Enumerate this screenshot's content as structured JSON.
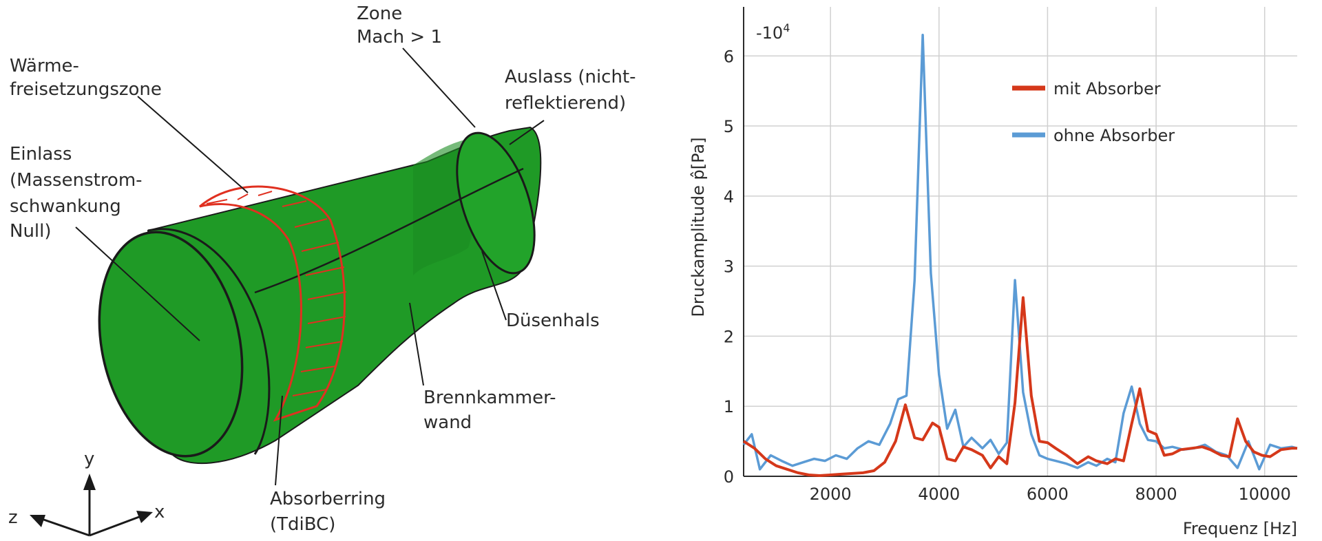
{
  "diagram": {
    "labels": {
      "zone_line1": "Zone",
      "zone_line2": "Mach > 1",
      "waerme_line1": "Wärme-",
      "waerme_line2": "freisetzungszone",
      "auslass_line1": "Auslass (nicht-",
      "auslass_line2": "reflektierend)",
      "einlass_line1": "Einlass",
      "einlass_line2": "(Massenstrom-",
      "einlass_line3": "schwankung",
      "einlass_line4": "Null)",
      "duesenhals": "Düsenhals",
      "brennkammer_line1": "Brennkammer-",
      "brennkammer_line2": "wand",
      "absorber_line1": "Absorberring",
      "absorber_line2": "(TdiBC)",
      "axis_y": "y",
      "axis_x": "x",
      "axis_z": "z"
    },
    "colors": {
      "body": "#1f9a26",
      "ring": "#e03020",
      "outline": "#1a1a1a"
    }
  },
  "chart_data": {
    "type": "line",
    "ylabel": "Druckamplitude p̂[Pa]",
    "xlabel": "Frequenz [Hz]",
    "multiplier_label": "-10",
    "multiplier_exp": "4",
    "xlim": [
      400,
      10600
    ],
    "ylim": [
      0,
      6.7
    ],
    "x_ticks": [
      2000,
      4000,
      6000,
      8000,
      10000
    ],
    "x_tick_labels": [
      "2000",
      "4000",
      "6000",
      "8000",
      "10000"
    ],
    "y_ticks": [
      0,
      1,
      2,
      3,
      4,
      5,
      6
    ],
    "y_tick_labels": [
      "0",
      "1",
      "2",
      "3",
      "4",
      "5",
      "6"
    ],
    "grid": true,
    "legend_position": "top-right",
    "series": [
      {
        "name": "mit Absorber",
        "color": "#d5381a",
        "x": [
          400,
          600,
          800,
          1000,
          1200,
          1400,
          1600,
          1800,
          2000,
          2200,
          2400,
          2600,
          2800,
          3000,
          3200,
          3380,
          3550,
          3700,
          3880,
          4000,
          4150,
          4300,
          4450,
          4600,
          4800,
          4950,
          5100,
          5250,
          5400,
          5550,
          5700,
          5850,
          6000,
          6150,
          6350,
          6550,
          6750,
          6900,
          7100,
          7250,
          7400,
          7550,
          7700,
          7850,
          8000,
          8150,
          8300,
          8450,
          8650,
          8850,
          9000,
          9200,
          9350,
          9500,
          9650,
          9800,
          9950,
          10100,
          10300,
          10500,
          10600
        ],
        "y": [
          0.5,
          0.4,
          0.25,
          0.15,
          0.1,
          0.05,
          0.02,
          0.01,
          0.02,
          0.03,
          0.04,
          0.05,
          0.08,
          0.2,
          0.5,
          1.02,
          0.55,
          0.52,
          0.76,
          0.7,
          0.25,
          0.22,
          0.42,
          0.38,
          0.3,
          0.12,
          0.28,
          0.18,
          1.05,
          2.55,
          1.15,
          0.5,
          0.48,
          0.4,
          0.3,
          0.18,
          0.28,
          0.22,
          0.18,
          0.25,
          0.22,
          0.75,
          1.25,
          0.65,
          0.6,
          0.3,
          0.32,
          0.38,
          0.4,
          0.42,
          0.38,
          0.3,
          0.28,
          0.82,
          0.5,
          0.35,
          0.3,
          0.28,
          0.38,
          0.4,
          0.4
        ]
      },
      {
        "name": "ohne Absorber",
        "color": "#5b9bd5",
        "x": [
          400,
          550,
          700,
          900,
          1100,
          1300,
          1500,
          1700,
          1900,
          2100,
          2300,
          2500,
          2700,
          2900,
          3100,
          3250,
          3400,
          3550,
          3700,
          3850,
          4000,
          4150,
          4300,
          4450,
          4600,
          4800,
          4950,
          5100,
          5250,
          5400,
          5550,
          5700,
          5850,
          6000,
          6150,
          6350,
          6550,
          6750,
          6900,
          7100,
          7250,
          7400,
          7550,
          7700,
          7850,
          8000,
          8150,
          8300,
          8500,
          8700,
          8900,
          9100,
          9300,
          9500,
          9700,
          9900,
          10100,
          10300,
          10500,
          10600
        ],
        "y": [
          0.45,
          0.6,
          0.1,
          0.3,
          0.22,
          0.15,
          0.2,
          0.25,
          0.22,
          0.3,
          0.25,
          0.4,
          0.5,
          0.45,
          0.75,
          1.1,
          1.15,
          2.8,
          6.3,
          2.9,
          1.45,
          0.68,
          0.95,
          0.42,
          0.55,
          0.4,
          0.52,
          0.32,
          0.48,
          2.8,
          1.2,
          0.6,
          0.3,
          0.25,
          0.22,
          0.18,
          0.12,
          0.2,
          0.15,
          0.25,
          0.2,
          0.9,
          1.28,
          0.75,
          0.52,
          0.5,
          0.4,
          0.42,
          0.38,
          0.4,
          0.45,
          0.35,
          0.3,
          0.12,
          0.5,
          0.1,
          0.45,
          0.4,
          0.42,
          0.4
        ]
      }
    ]
  }
}
